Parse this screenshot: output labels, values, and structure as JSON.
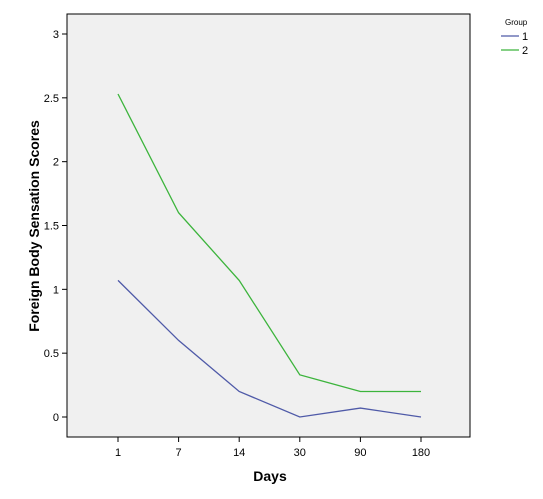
{
  "chart_data": {
    "type": "line",
    "title": "",
    "xlabel": "Days",
    "ylabel": "Foreign Body Sensation Scores",
    "categories": [
      "1",
      "7",
      "14",
      "30",
      "90",
      "180"
    ],
    "ylim": [
      0,
      3.15
    ],
    "yticks": [
      "0",
      "0.5",
      "1",
      "1.5",
      "2",
      "2.5",
      "3"
    ],
    "ytick_values": [
      0,
      0.5,
      1,
      1.5,
      2,
      2.5,
      3
    ],
    "grid": false,
    "legend": {
      "title": "Group",
      "placement": "top-right-outside"
    },
    "series": [
      {
        "name": "1",
        "color": "#4f5aa8",
        "values": [
          1.07,
          0.6,
          0.2,
          0.0,
          0.07,
          0.0
        ]
      },
      {
        "name": "2",
        "color": "#3cb43c",
        "values": [
          2.53,
          1.6,
          1.07,
          0.33,
          0.2,
          0.2
        ]
      }
    ]
  }
}
